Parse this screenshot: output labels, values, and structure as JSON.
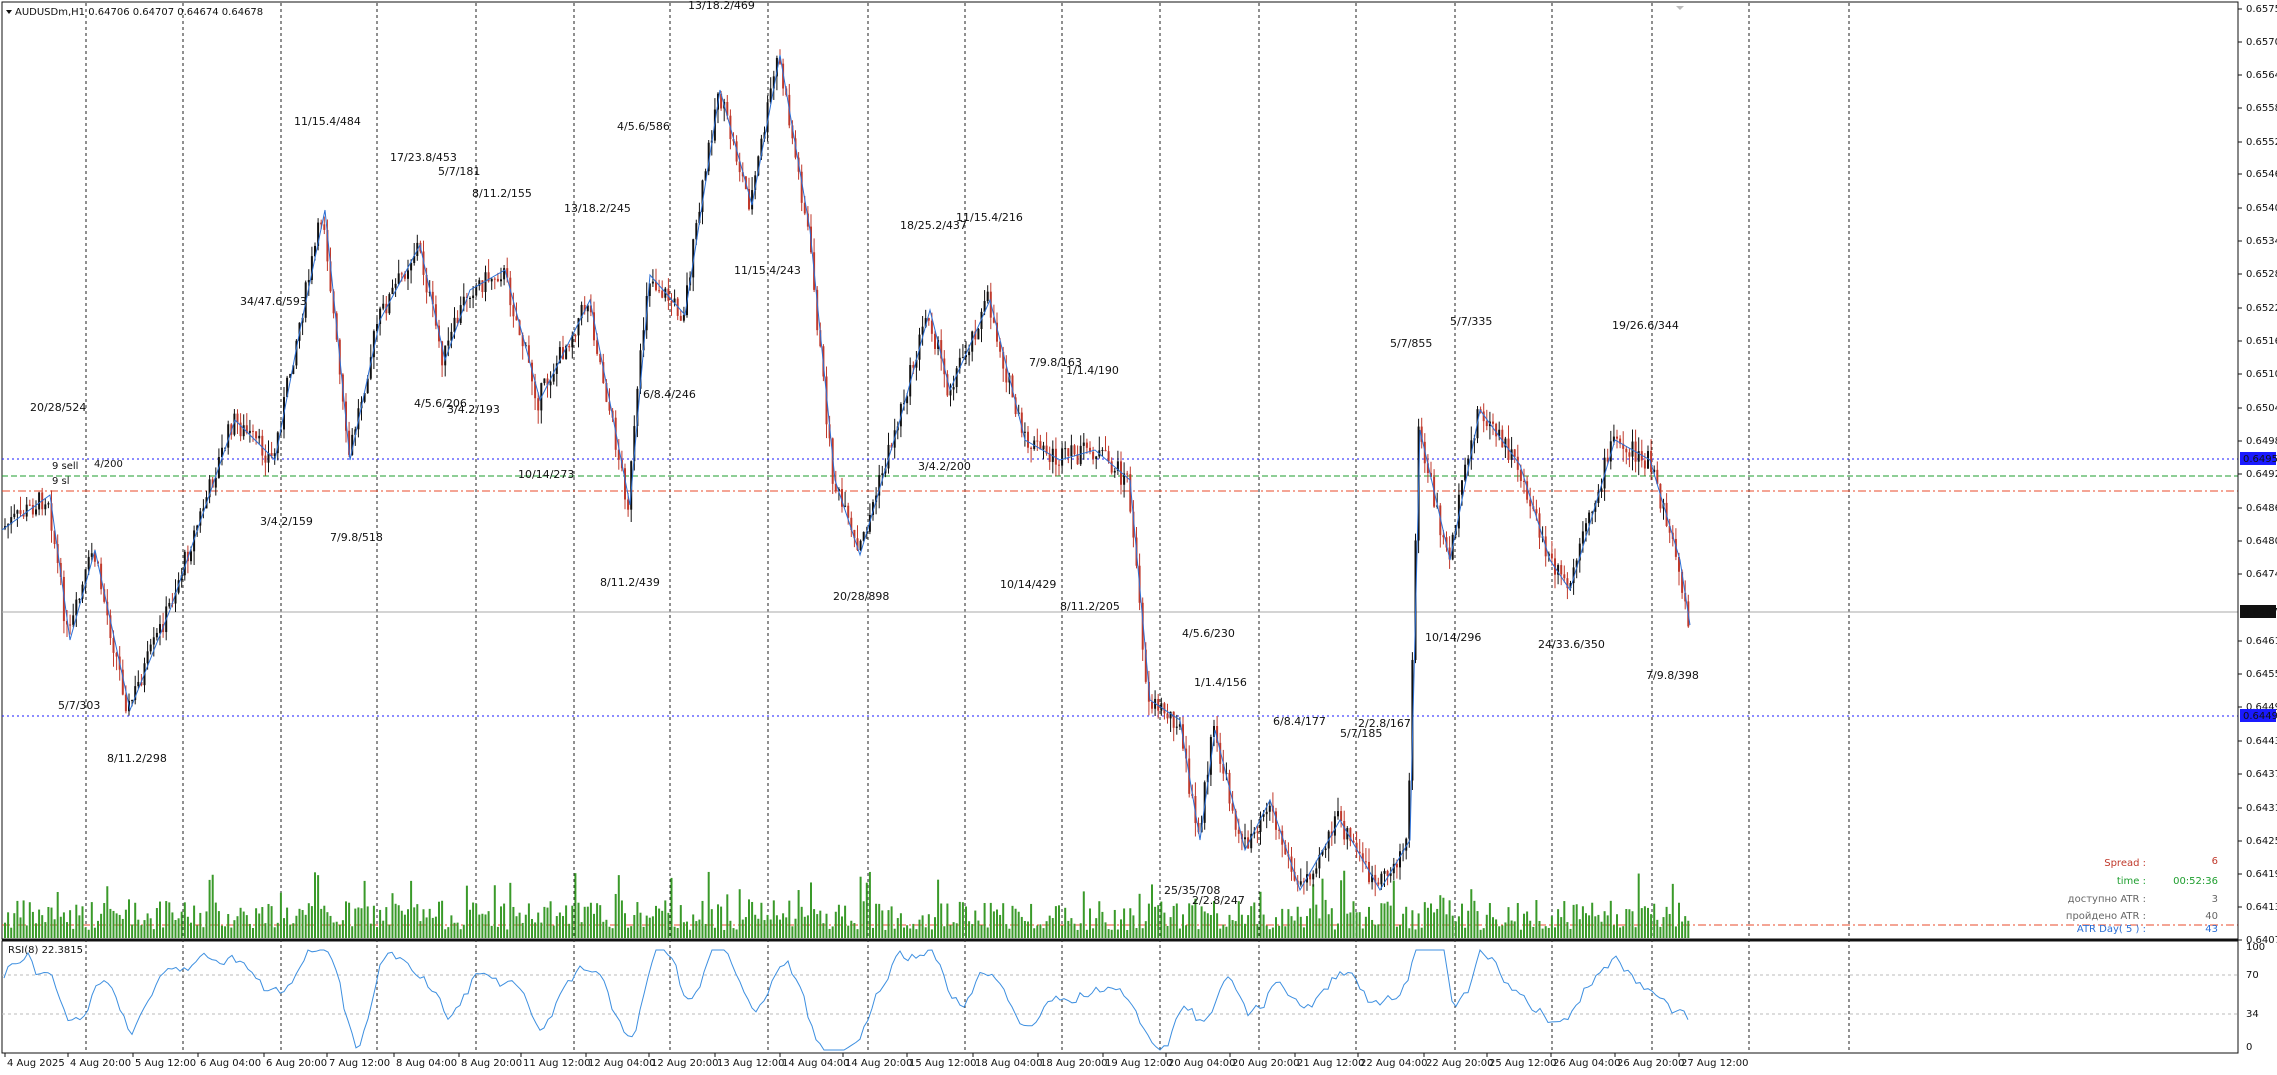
{
  "header": {
    "symbol_info": "AUDUSDm,H1  0.64706 0.64707 0.64674 0.64678"
  },
  "colors": {
    "bull": "#111111",
    "bear": "#c0392b",
    "zigzag": "#2b6fd6",
    "volume": "#3a9a2a",
    "rsi": "#3d8fe0",
    "grid": "#222222",
    "level_blue": "#1a1aff",
    "level_green": "#1e9e2e",
    "level_red": "#e84b2b"
  },
  "price_axis": {
    "labels": [
      "0.65755",
      "0.65705",
      "0.65640",
      "0.65585",
      "0.65520",
      "0.65465",
      "0.65405",
      "0.65340",
      "0.65280",
      "0.65220",
      "0.65160",
      "0.65100",
      "0.65040",
      "0.64980",
      "0.64920",
      "0.64860",
      "0.64800",
      "0.64740",
      "0.64615",
      "0.64555",
      "0.64495",
      "0.64435",
      "0.64375",
      "0.64315",
      "0.64255",
      "0.64195",
      "0.64135",
      "0.64075"
    ],
    "highlight_upper": "0.64959",
    "highlight_current": "0.64678",
    "highlight_lower": "0.64490"
  },
  "time_axis": {
    "labels": [
      "4 Aug 2025",
      "4 Aug 20:00",
      "5 Aug 12:00",
      "6 Aug 04:00",
      "6 Aug 20:00",
      "7 Aug 12:00",
      "8 Aug 04:00",
      "8 Aug 20:00",
      "11 Aug 12:00",
      "12 Aug 04:00",
      "12 Aug 20:00",
      "13 Aug 12:00",
      "14 Aug 04:00",
      "14 Aug 20:00",
      "15 Aug 12:00",
      "18 Aug 04:00",
      "18 Aug 20:00",
      "19 Aug 12:00",
      "20 Aug 04:00",
      "20 Aug 20:00",
      "21 Aug 12:00",
      "22 Aug 04:00",
      "22 Aug 20:00",
      "25 Aug 12:00",
      "26 Aug 04:00",
      "26 Aug 20:00",
      "27 Aug 12:00"
    ]
  },
  "annotations": [
    {
      "text": "20/28/524"
    },
    {
      "text": "5/7/303"
    },
    {
      "text": "8/11.2/298"
    },
    {
      "text": "3/4.2/159"
    },
    {
      "text": "34/47.6/593"
    },
    {
      "text": "11/15.4/484"
    },
    {
      "text": "7/9.8/518"
    },
    {
      "text": "17/23.8/453"
    },
    {
      "text": "5/7/181"
    },
    {
      "text": "8/11.2/155"
    },
    {
      "text": "4/5.6/206"
    },
    {
      "text": "3/4.2/193"
    },
    {
      "text": "10/14/273"
    },
    {
      "text": "13/18.2/245"
    },
    {
      "text": "8/11.2/439"
    },
    {
      "text": "6/8.4/246"
    },
    {
      "text": "4/5.6/586"
    },
    {
      "text": "13/18.2/469"
    },
    {
      "text": "11/15.4/243"
    },
    {
      "text": "18/25.2/437"
    },
    {
      "text": "11/15.4/216"
    },
    {
      "text": "20/28/898"
    },
    {
      "text": "3/4.2/200"
    },
    {
      "text": "7/9.8/163"
    },
    {
      "text": "1/1.4/190"
    },
    {
      "text": "10/14/429"
    },
    {
      "text": "8/11.2/205"
    },
    {
      "text": "4/5.6/230"
    },
    {
      "text": "1/1.4/156"
    },
    {
      "text": "6/8.4/177"
    },
    {
      "text": "2/2.8/167"
    },
    {
      "text": "5/7/185"
    },
    {
      "text": "25/35/708"
    },
    {
      "text": "2/2.8/247"
    },
    {
      "text": "5/7/855"
    },
    {
      "text": "5/7/335"
    },
    {
      "text": "10/14/296"
    },
    {
      "text": "24/33.6/350"
    },
    {
      "text": "19/26.6/344"
    },
    {
      "text": "7/9.8/398"
    },
    {
      "text": "9 sell"
    },
    {
      "text": "4/200"
    },
    {
      "text": "9 sl"
    }
  ],
  "info_panel": {
    "spread_label": "Spread :",
    "spread_value": "6",
    "time_label": "time :",
    "time_value": "00:52:36",
    "atr_avail_label": "доступно ATR :",
    "atr_avail_value": "3",
    "atr_passed_label": "пройдено ATR :",
    "atr_passed_value": "40",
    "atr_day_label": "ATR Day( 5 ) :",
    "atr_day_value": "43"
  },
  "rsi": {
    "title": "RSI(8) 22.3815",
    "levels": [
      "100",
      "70",
      "34",
      "0"
    ]
  }
}
